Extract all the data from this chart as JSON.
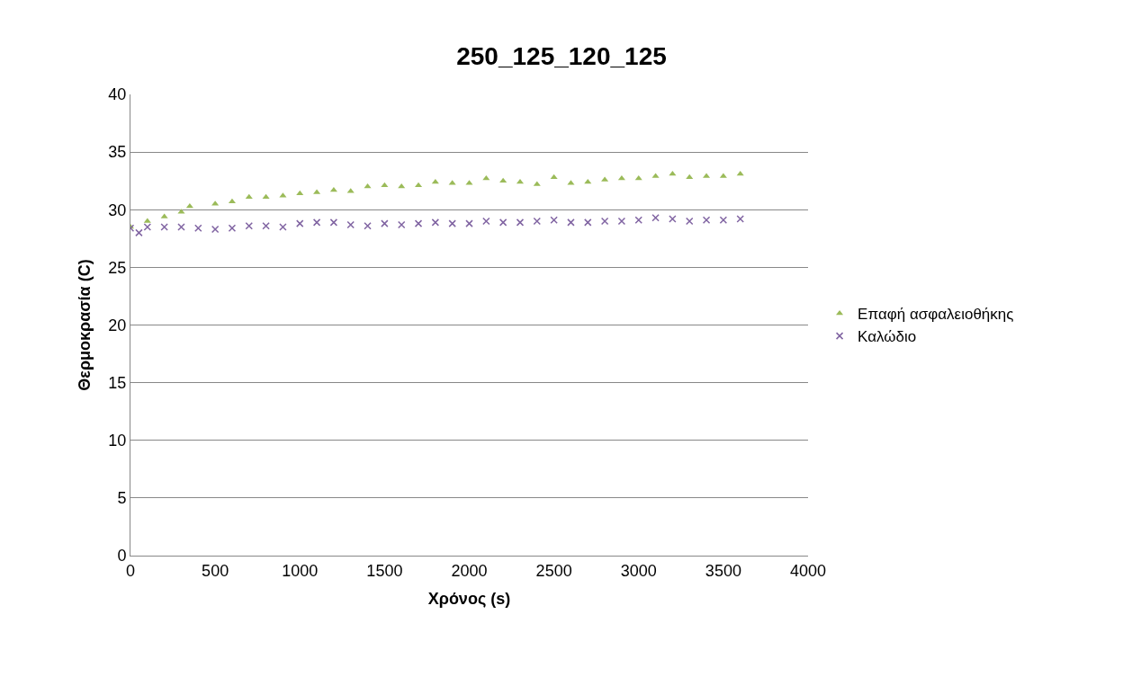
{
  "chart_data": {
    "type": "scatter",
    "title": "250_125_120_125",
    "xlabel": "Χρόνος (s)",
    "ylabel": "Θερμοκρασία (C)",
    "xlim": [
      0,
      4000
    ],
    "xticks": [
      0,
      500,
      1000,
      1500,
      2000,
      2500,
      3000,
      3500,
      4000
    ],
    "ylim": [
      0,
      40
    ],
    "yticks": [
      0,
      5,
      10,
      15,
      20,
      25,
      30,
      35,
      40
    ],
    "grid": "y",
    "legend": "right",
    "series": [
      {
        "name": "Επαφή ασφαλειοθήκης",
        "color": "#9bbb59",
        "marker": "triangle",
        "x": [
          0,
          100,
          200,
          300,
          350,
          500,
          600,
          700,
          800,
          900,
          1000,
          1100,
          1200,
          1300,
          1400,
          1500,
          1600,
          1700,
          1800,
          1900,
          2000,
          2100,
          2200,
          2300,
          2400,
          2500,
          2600,
          2700,
          2800,
          2900,
          3000,
          3100,
          3200,
          3300,
          3400,
          3500,
          3600
        ],
        "values": [
          28.5,
          29,
          29.4,
          29.8,
          30.3,
          30.5,
          30.7,
          31.1,
          31.1,
          31.2,
          31.4,
          31.5,
          31.7,
          31.6,
          32,
          32.1,
          32.0,
          32.1,
          32.4,
          32.3,
          32.3,
          32.7,
          32.5,
          32.4,
          32.2,
          32.8,
          32.3,
          32.4,
          32.6,
          32.7,
          32.7,
          32.9,
          33.1,
          32.8,
          32.9,
          32.9,
          33.1
        ]
      },
      {
        "name": "Καλώδιο",
        "color": "#8064a2",
        "marker": "cross",
        "x": [
          0,
          50,
          100,
          200,
          300,
          400,
          500,
          600,
          700,
          800,
          900,
          1000,
          1100,
          1200,
          1300,
          1400,
          1500,
          1600,
          1700,
          1800,
          1900,
          2000,
          2100,
          2200,
          2300,
          2400,
          2500,
          2600,
          2700,
          2800,
          2900,
          3000,
          3100,
          3200,
          3300,
          3400,
          3500,
          3600
        ],
        "values": [
          28.4,
          28.0,
          28.5,
          28.5,
          28.5,
          28.4,
          28.3,
          28.4,
          28.6,
          28.6,
          28.5,
          28.8,
          28.9,
          28.9,
          28.7,
          28.6,
          28.8,
          28.7,
          28.8,
          28.9,
          28.8,
          28.8,
          29.0,
          28.9,
          28.9,
          29.0,
          29.1,
          28.9,
          28.9,
          29.0,
          29.0,
          29.1,
          29.3,
          29.2,
          29.0,
          29.1,
          29.1,
          29.2
        ]
      }
    ]
  }
}
